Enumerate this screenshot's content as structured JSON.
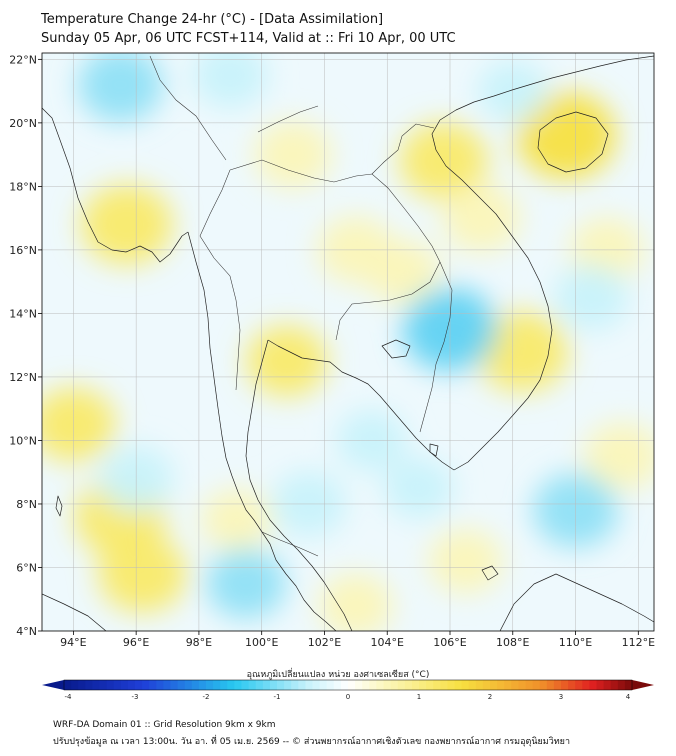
{
  "title": {
    "line1": "Temperature Change 24-hr (°C) - [Data Assimilation]",
    "line2": "Sunday 05 Apr, 06 UTC FCST+114, Valid at :: Fri 10 Apr, 00 UTC"
  },
  "map": {
    "lon_range": [
      93,
      112.5
    ],
    "lat_range": [
      4,
      22.2
    ],
    "lon_ticks": [
      94,
      96,
      98,
      100,
      102,
      104,
      106,
      108,
      110,
      112
    ],
    "lat_ticks": [
      4,
      6,
      8,
      10,
      12,
      14,
      16,
      18,
      20,
      22
    ],
    "lon_labels": [
      "94°E",
      "96°E",
      "98°E",
      "100°E",
      "102°E",
      "104°E",
      "106°E",
      "108°E",
      "110°E",
      "112°E"
    ],
    "lat_labels": [
      "4°N",
      "6°N",
      "8°N",
      "10°N",
      "12°N",
      "14°N",
      "16°N",
      "18°N",
      "20°N",
      "22°N"
    ],
    "warm_spots": [
      {
        "lon": 95.7,
        "lat": 16.8,
        "value": 0.9
      },
      {
        "lon": 94.0,
        "lat": 10.5,
        "value": 0.7
      },
      {
        "lon": 95.5,
        "lat": 7.6,
        "value": 0.9
      },
      {
        "lon": 96.2,
        "lat": 5.8,
        "value": 0.8
      },
      {
        "lon": 101.0,
        "lat": 19.0,
        "value": 0.5
      },
      {
        "lon": 100.8,
        "lat": 12.5,
        "value": 0.6
      },
      {
        "lon": 103.0,
        "lat": 16.0,
        "value": 0.5
      },
      {
        "lon": 104.5,
        "lat": 15.3,
        "value": 0.4
      },
      {
        "lon": 105.8,
        "lat": 18.8,
        "value": 0.8
      },
      {
        "lon": 107.0,
        "lat": 17.0,
        "value": 0.5
      },
      {
        "lon": 108.3,
        "lat": 12.8,
        "value": 0.9
      },
      {
        "lon": 109.7,
        "lat": 19.6,
        "value": 1.1
      },
      {
        "lon": 103.0,
        "lat": 4.8,
        "value": 0.4
      },
      {
        "lon": 99.2,
        "lat": 7.5,
        "value": 0.3
      },
      {
        "lon": 106.5,
        "lat": 6.2,
        "value": 0.4
      },
      {
        "lon": 111.5,
        "lat": 9.5,
        "value": 0.5
      },
      {
        "lon": 111.0,
        "lat": 16.0,
        "value": 0.4
      }
    ],
    "cool_spots": [
      {
        "lon": 95.5,
        "lat": 21.2,
        "value": -0.6
      },
      {
        "lon": 99.0,
        "lat": 21.5,
        "value": -0.4
      },
      {
        "lon": 106.0,
        "lat": 13.5,
        "value": -0.8
      },
      {
        "lon": 110.0,
        "lat": 7.8,
        "value": -0.6
      },
      {
        "lon": 105.0,
        "lat": 8.5,
        "value": -0.3
      },
      {
        "lon": 96.0,
        "lat": 8.8,
        "value": -0.4
      },
      {
        "lon": 99.5,
        "lat": 5.5,
        "value": -0.5
      },
      {
        "lon": 110.5,
        "lat": 14.5,
        "value": -0.4
      },
      {
        "lon": 103.5,
        "lat": 10.0,
        "value": -0.3
      },
      {
        "lon": 108.0,
        "lat": 21.0,
        "value": -0.3
      },
      {
        "lon": 101.5,
        "lat": 8.0,
        "value": -0.4
      }
    ]
  },
  "colorbar": {
    "label": "อุณหภูมิเปลี่ยนแปลง หน่วย องศาเซลเซียส (°C)",
    "min": -4,
    "max": 4,
    "ticks": [
      "-4",
      "-3",
      "-2",
      "-1",
      "0",
      "1",
      "2",
      "3",
      "4"
    ],
    "colors": {
      "min_end": "#081a8c",
      "blue": "#1f3fd8",
      "cyan": "#28c8f0",
      "light_cyan": "#c8f2fb",
      "white": "#ffffff",
      "light_yellow": "#fbf6b8",
      "yellow": "#f7e040",
      "orange": "#f0902a",
      "red": "#e02020",
      "max_end": "#7a0a0a"
    }
  },
  "footer": {
    "line1": "WRF-DA Domain 01 :: Grid Resolution 9km x 9km",
    "line2": "ปรับปรุงข้อมูล ณ เวลา 13:00น. วัน อา. ที่ 05 เม.ย. 2569 -- © ส่วนพยากรณ์อากาศเชิงตัวเลข กองพยากรณ์อากาศ กรมอุตุนิยมวิทยา"
  }
}
